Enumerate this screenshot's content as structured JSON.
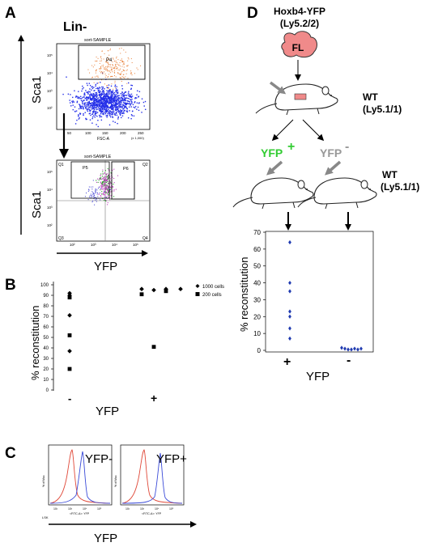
{
  "panel_a": {
    "letter": "A",
    "title": "Lin-",
    "y_axis_label": "Sca1",
    "x_axis_label": "YFP",
    "top_plot": {
      "header": "sort-SAMPLE",
      "gate": "P4",
      "x_label": "FSC-A",
      "x_ticks": [
        "50",
        "100",
        "150",
        "200",
        "250"
      ],
      "x_scale_note": "(x 1,000)",
      "y_ticks": [
        "10²",
        "10³",
        "10⁴",
        "10⁵"
      ]
    },
    "bottom_plot": {
      "header": "sort-SAMPLE",
      "gates": [
        "P5",
        "P6"
      ],
      "quadrants": [
        "Q1",
        "Q2",
        "Q3",
        "Q4"
      ],
      "x_ticks": [
        "10²",
        "10³",
        "10⁴",
        "10⁵"
      ],
      "y_ticks": [
        "10²",
        "10³",
        "10⁴",
        "10⁵"
      ]
    }
  },
  "panel_b": {
    "letter": "B",
    "chart_data": {
      "type": "scatter",
      "ylabel": "% reconstitution",
      "xlabel": "YFP",
      "categories": [
        "-",
        "+"
      ],
      "ylim": [
        0,
        100
      ],
      "y_ticks": [
        "0",
        "10",
        "20",
        "30",
        "40",
        "50",
        "60",
        "70",
        "80",
        "90",
        "100"
      ],
      "grid": false,
      "legend_placement": "top-right",
      "series": [
        {
          "name": "1000 cells",
          "marker": "diamond",
          "points": [
            {
              "x": "-",
              "y": 92
            },
            {
              "x": "-",
              "y": 90
            },
            {
              "x": "-",
              "y": 71
            },
            {
              "x": "-",
              "y": 37
            },
            {
              "x": "+",
              "y": 96
            },
            {
              "x": "+",
              "y": 95
            },
            {
              "x": "+",
              "y": 96
            },
            {
              "x": "+",
              "y": 96
            }
          ]
        },
        {
          "name": "200 cells",
          "marker": "square",
          "points": [
            {
              "x": "-",
              "y": 88
            },
            {
              "x": "-",
              "y": 52
            },
            {
              "x": "-",
              "y": 20
            },
            {
              "x": "+",
              "y": 91
            },
            {
              "x": "+",
              "y": 41
            },
            {
              "x": "+",
              "y": 94
            }
          ]
        }
      ]
    }
  },
  "panel_c": {
    "letter": "C",
    "plots": [
      {
        "label": "YFP-",
        "y_label": "% of Max",
        "x_label": "<FITC-A>: YFP",
        "x_ticks": [
          "10²",
          "10³",
          "10⁴",
          "10⁵"
        ]
      },
      {
        "label": "YFP+",
        "y_label": "% of Max",
        "x_label": "<FITC-A>: YFP",
        "x_ticks": [
          "10²",
          "10³",
          "10⁴",
          "10⁵"
        ]
      }
    ],
    "corner_label": "LSK",
    "x_axis_label": "YFP"
  },
  "panel_d": {
    "letter": "D",
    "donor_line1": "Hoxb4-YFP",
    "donor_line2": "(Ly5.2/2)",
    "fl_label": "FL",
    "wt1_line1": "WT",
    "wt1_line2": "(Ly5.1/1)",
    "wt2_line1": "WT",
    "wt2_line2": "(Ly5.1/1)",
    "yfp_pos": "YFP",
    "yfp_pos_sign": "+",
    "yfp_neg": "YFP",
    "yfp_neg_sign": "-",
    "colors": {
      "yfp_positive": "#33cc33",
      "yfp_negative": "#999999",
      "fl_organ": "#f08a8a",
      "points": "#1f3ab0"
    },
    "chart_data": {
      "type": "scatter",
      "ylabel": "% reconstitution",
      "xlabel": "YFP",
      "categories": [
        "+",
        "-"
      ],
      "ylim": [
        0,
        70
      ],
      "y_ticks": [
        "0",
        "10",
        "20",
        "30",
        "40",
        "50",
        "60",
        "70"
      ],
      "grid": false,
      "series": [
        {
          "x": "+",
          "values": [
            64,
            40,
            35,
            23,
            20,
            13,
            7
          ]
        },
        {
          "x": "-",
          "values": [
            1.5,
            1,
            0.5,
            0.5,
            1,
            0.5,
            1
          ]
        }
      ]
    }
  }
}
